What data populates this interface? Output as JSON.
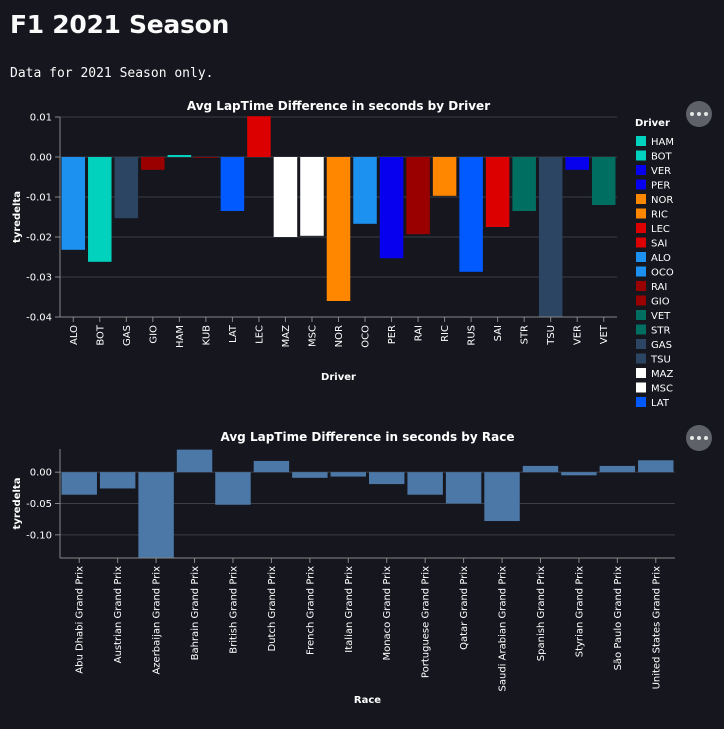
{
  "page": {
    "title": "F1 2021 Season",
    "subtitle": "Data for 2021 Season only."
  },
  "chart_data": [
    {
      "type": "bar",
      "title": "Avg LapTime Difference in seconds by Driver",
      "xlabel": "Driver",
      "ylabel": "tyredelta",
      "ylim": [
        -0.04,
        0.01
      ],
      "yticks": [
        "0.01",
        "0.00",
        "-0.01",
        "-0.02",
        "-0.03",
        "-0.04"
      ],
      "grid": true,
      "categories": [
        "ALO",
        "BOT",
        "GAS",
        "GIO",
        "HAM",
        "KUB",
        "LAT",
        "LEC",
        "MAZ",
        "MSC",
        "NOR",
        "OCO",
        "PER",
        "RAI",
        "RIC",
        "RUS",
        "SAI",
        "STR",
        "TSU",
        "VER",
        "VET"
      ],
      "values": [
        -0.0232,
        -0.0262,
        -0.0153,
        -0.0032,
        0.0005,
        0.0,
        -0.0135,
        0.0102,
        -0.02,
        -0.0197,
        -0.036,
        -0.0167,
        -0.0253,
        -0.0193,
        -0.0097,
        -0.0287,
        -0.0175,
        -0.0135,
        -0.04,
        -0.0032,
        -0.012
      ],
      "colors": [
        "#1c91f0",
        "#00d2be",
        "#2b4562",
        "#9b0000",
        "#00d2be",
        "#9b0000",
        "#005aff",
        "#dc0000",
        "#ffffff",
        "#ffffff",
        "#ff8700",
        "#1c91f0",
        "#0600ef",
        "#9b0000",
        "#ff8700",
        "#005aff",
        "#dc0000",
        "#006f62",
        "#2b4562",
        "#0600ef",
        "#006f62"
      ],
      "legend": {
        "title": "Driver",
        "position": "right",
        "entries": [
          {
            "label": "HAM",
            "color": "#00d2be"
          },
          {
            "label": "BOT",
            "color": "#00d2be"
          },
          {
            "label": "VER",
            "color": "#0600ef"
          },
          {
            "label": "PER",
            "color": "#0600ef"
          },
          {
            "label": "NOR",
            "color": "#ff8700"
          },
          {
            "label": "RIC",
            "color": "#ff8700"
          },
          {
            "label": "LEC",
            "color": "#dc0000"
          },
          {
            "label": "SAI",
            "color": "#dc0000"
          },
          {
            "label": "ALO",
            "color": "#1c91f0"
          },
          {
            "label": "OCO",
            "color": "#1c91f0"
          },
          {
            "label": "RAI",
            "color": "#9b0000"
          },
          {
            "label": "GIO",
            "color": "#9b0000"
          },
          {
            "label": "VET",
            "color": "#006f62"
          },
          {
            "label": "STR",
            "color": "#006f62"
          },
          {
            "label": "GAS",
            "color": "#2b4562"
          },
          {
            "label": "TSU",
            "color": "#2b4562"
          },
          {
            "label": "MAZ",
            "color": "#ffffff"
          },
          {
            "label": "MSC",
            "color": "#ffffff"
          },
          {
            "label": "LAT",
            "color": "#005aff"
          }
        ]
      }
    },
    {
      "type": "bar",
      "title": "Avg LapTime Difference in seconds by Race",
      "xlabel": "Race",
      "ylabel": "tyredelta",
      "ylim": [
        -0.137,
        0.037
      ],
      "yticks": [
        "0.00",
        "-0.05",
        "-0.10"
      ],
      "ytick_values": [
        0,
        -0.05,
        -0.1
      ],
      "grid": true,
      "bar_color": "#4c78a8",
      "categories": [
        "Abu Dhabi Grand Prix",
        "Austrian Grand Prix",
        "Azerbaijan Grand Prix",
        "Bahrain Grand Prix",
        "British Grand Prix",
        "Dutch Grand Prix",
        "French Grand Prix",
        "Italian Grand Prix",
        "Monaco Grand Prix",
        "Portuguese Grand Prix",
        "Qatar Grand Prix",
        "Saudi Arabian Grand Prix",
        "Spanish Grand Prix",
        "Styrian Grand Prix",
        "São Paulo Grand Prix",
        "United States Grand Prix"
      ],
      "values": [
        -0.036,
        -0.026,
        -0.137,
        0.036,
        -0.052,
        0.018,
        -0.009,
        -0.007,
        -0.019,
        -0.036,
        -0.05,
        -0.078,
        0.01,
        -0.005,
        0.01,
        0.019
      ]
    }
  ]
}
